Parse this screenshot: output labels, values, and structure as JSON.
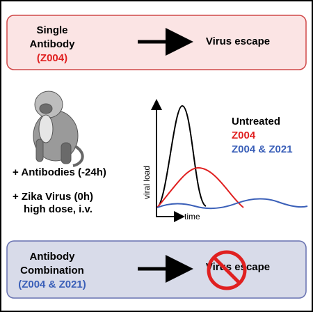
{
  "top_panel": {
    "title_lines": [
      "Single",
      "Antibody"
    ],
    "antibody": "(Z004)",
    "antibody_color": "#e02020",
    "outcome": "Virus escape"
  },
  "middle": {
    "treatments": [
      "+ Antibodies (-24h)",
      "+ Zika Virus (0h)",
      "high dose, i.v."
    ],
    "plot": {
      "y_label": "viral load",
      "x_label": "time",
      "legend": [
        {
          "name": "Untreated",
          "color": "#000000"
        },
        {
          "name": "Z004",
          "color": "#e02020"
        },
        {
          "name": "Z004 & Z021",
          "color": "#3a5fb8"
        }
      ]
    }
  },
  "bottom_panel": {
    "title_lines": [
      "Antibody",
      "Combination"
    ],
    "antibody": "(Z004 & Z021)",
    "antibody_color": "#3a5fb8",
    "outcome": "Virus escape"
  }
}
